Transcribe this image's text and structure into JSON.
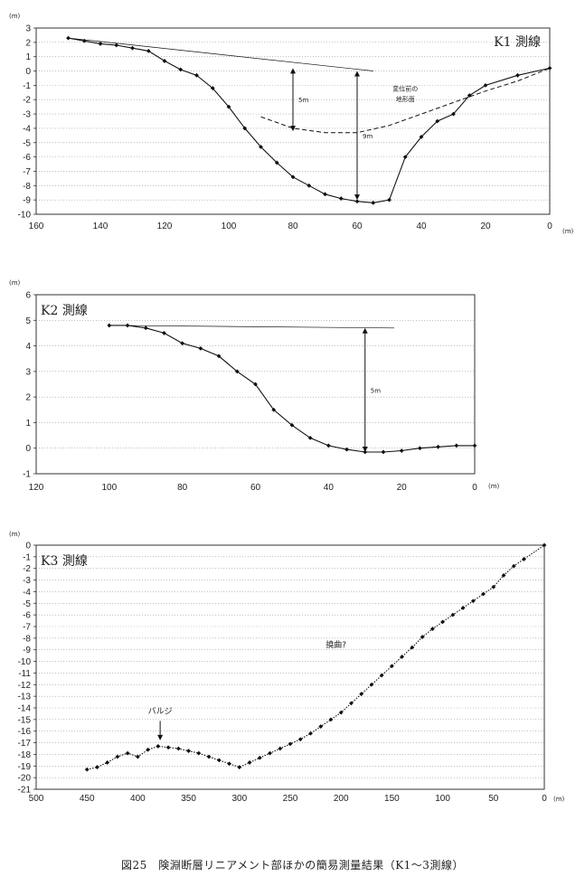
{
  "caption": "図25　険淵断層リニアメント部ほかの簡易測量結果（K1～3測線）",
  "chart_data": [
    {
      "type": "line",
      "title": "K1 測線",
      "yunit": "(m)",
      "xunit": "(m)",
      "xlim": [
        160,
        0
      ],
      "ylim": [
        -10,
        3
      ],
      "xticks": [
        160,
        140,
        120,
        100,
        80,
        60,
        40,
        20,
        0
      ],
      "yticks": [
        3,
        2,
        1,
        0,
        -1,
        -2,
        -3,
        -4,
        -5,
        -6,
        -7,
        -8,
        -9,
        -10
      ],
      "grid": true,
      "series": [
        {
          "style": "solid-markers",
          "x": [
            150,
            145,
            140,
            135,
            130,
            125,
            120,
            115,
            110,
            105,
            100,
            95,
            90,
            85,
            80,
            75,
            70,
            65,
            60,
            55,
            50,
            45,
            40,
            35,
            30,
            25,
            20,
            10,
            0
          ],
          "y": [
            2.3,
            2.1,
            1.9,
            1.8,
            1.6,
            1.4,
            0.7,
            0.1,
            -0.3,
            -1.2,
            -2.5,
            -4.0,
            -5.3,
            -6.4,
            -7.4,
            -8.0,
            -8.6,
            -8.9,
            -9.1,
            -9.2,
            -9.0,
            -6.0,
            -4.6,
            -3.5,
            -3.0,
            -1.7,
            -1.0,
            -0.3,
            0.2
          ]
        },
        {
          "style": "thin-line",
          "x": [
            150,
            55
          ],
          "y": [
            2.3,
            0.0
          ]
        },
        {
          "style": "dashed",
          "x": [
            90,
            80,
            70,
            60,
            50,
            40,
            30,
            20,
            10,
            0
          ],
          "y": [
            -3.2,
            -4.0,
            -4.3,
            -4.3,
            -3.8,
            -3.0,
            -2.2,
            -1.4,
            -0.7,
            0.2
          ]
        }
      ],
      "annotations": [
        {
          "text": "5m",
          "x": 80,
          "y_from": 0.2,
          "y_to": -4.2
        },
        {
          "text": "9m",
          "x": 60,
          "y_from": 0.0,
          "y_to": -9.0
        },
        {
          "text": "変位前の",
          "x": 45,
          "y": -1.4
        },
        {
          "text": "地形面",
          "x": 45,
          "y": -2.1
        }
      ]
    },
    {
      "type": "line",
      "title": "K2 測線",
      "yunit": "(m)",
      "xunit": "(m)",
      "xlim": [
        120,
        0
      ],
      "ylim": [
        -1,
        6
      ],
      "xticks": [
        120,
        100,
        80,
        60,
        40,
        20,
        0
      ],
      "yticks": [
        6,
        5,
        4,
        3,
        2,
        1,
        0,
        -1
      ],
      "grid": true,
      "series": [
        {
          "style": "solid-markers",
          "x": [
            100,
            95,
            90,
            85,
            80,
            75,
            70,
            65,
            60,
            55,
            50,
            45,
            40,
            35,
            30,
            25,
            20,
            15,
            10,
            5,
            0
          ],
          "y": [
            4.8,
            4.8,
            4.7,
            4.5,
            4.1,
            3.9,
            3.6,
            3.0,
            2.5,
            1.5,
            0.9,
            0.4,
            0.1,
            -0.05,
            -0.15,
            -0.15,
            -0.1,
            0.0,
            0.05,
            0.1,
            0.1
          ]
        },
        {
          "style": "thin-line",
          "x": [
            100,
            22
          ],
          "y": [
            4.8,
            4.7
          ]
        }
      ],
      "annotations": [
        {
          "text": "5m",
          "x": 30,
          "y_from": 4.7,
          "y_to": -0.15
        }
      ]
    },
    {
      "type": "line",
      "title": "K3 測線",
      "yunit": "(m)",
      "xunit": "(m)",
      "xlim": [
        500,
        0
      ],
      "ylim": [
        -21,
        0
      ],
      "xticks": [
        500,
        450,
        400,
        350,
        300,
        250,
        200,
        150,
        100,
        50,
        0
      ],
      "yticks": [
        0,
        -1,
        -2,
        -3,
        -4,
        -5,
        -6,
        -7,
        -8,
        -9,
        -10,
        -11,
        -12,
        -13,
        -14,
        -15,
        -16,
        -17,
        -18,
        -19,
        -20,
        -21
      ],
      "grid": true,
      "series": [
        {
          "style": "dotted-markers",
          "x": [
            450,
            440,
            430,
            420,
            410,
            400,
            390,
            380,
            370,
            360,
            350,
            340,
            330,
            320,
            310,
            300,
            290,
            280,
            270,
            260,
            250,
            240,
            230,
            220,
            210,
            200,
            190,
            180,
            170,
            160,
            150,
            140,
            130,
            120,
            110,
            100,
            90,
            80,
            70,
            60,
            50,
            40,
            30,
            20,
            0
          ],
          "y": [
            -19.3,
            -19.1,
            -18.7,
            -18.2,
            -17.9,
            -18.2,
            -17.6,
            -17.3,
            -17.4,
            -17.5,
            -17.7,
            -17.9,
            -18.2,
            -18.5,
            -18.8,
            -19.1,
            -18.7,
            -18.3,
            -17.9,
            -17.5,
            -17.1,
            -16.7,
            -16.2,
            -15.6,
            -15.0,
            -14.4,
            -13.6,
            -12.8,
            -12.0,
            -11.2,
            -10.4,
            -9.6,
            -8.8,
            -7.9,
            -7.2,
            -6.6,
            -6.0,
            -5.4,
            -4.8,
            -4.2,
            -3.6,
            -2.6,
            -1.8,
            -1.2,
            0.0
          ]
        }
      ],
      "annotations": [
        {
          "text": "バルジ",
          "x": 378,
          "y": -14.5,
          "arrow_to": -17.1
        },
        {
          "text": "撓曲?",
          "x": 205,
          "y": -8.8
        }
      ]
    }
  ]
}
